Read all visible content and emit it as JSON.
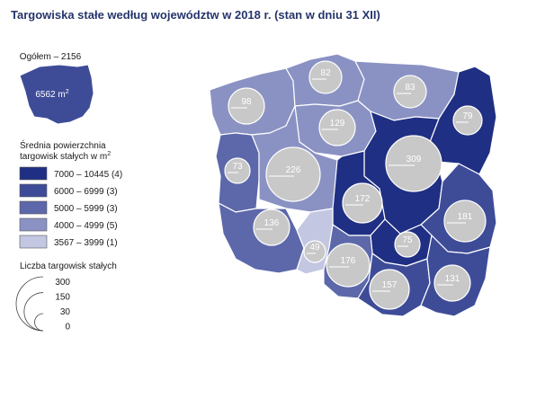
{
  "title": "Targowiska stałe według województw w 2018 r. (stan w dniu 31 XII)",
  "total": {
    "label": "Ogółem – 2156",
    "area_value": "6562",
    "area_unit": "m",
    "area_sup": "2"
  },
  "legend_area": {
    "title_line1": "Średnia powierzchnia",
    "title_line2": "targowisk stałych w m",
    "title_sup": "2",
    "classes": [
      {
        "label": "7000 – 10445 (4)",
        "color": "#1f2f83"
      },
      {
        "label": "6000 –   6999 (3)",
        "color": "#3e4c98"
      },
      {
        "label": "5000 –   5999 (3)",
        "color": "#5c68aa"
      },
      {
        "label": "4000 –   4999 (5)",
        "color": "#8a92c4"
      },
      {
        "label": "3567 –   3999 (1)",
        "color": "#c3c7e2"
      }
    ]
  },
  "legend_count": {
    "title": "Liczba targowisk stałych",
    "levels": [
      "300",
      "150",
      "30",
      "0"
    ]
  },
  "regions": [
    {
      "name": "zachodniopomorskie",
      "count": "98",
      "color": "#8a92c4"
    },
    {
      "name": "pomorskie",
      "count": "82",
      "color": "#8a92c4"
    },
    {
      "name": "warmińsko-mazurskie",
      "count": "83",
      "color": "#8a92c4"
    },
    {
      "name": "podlaskie",
      "count": "79",
      "color": "#1f2f83"
    },
    {
      "name": "kujawsko-pomorskie",
      "count": "129",
      "color": "#8a92c4"
    },
    {
      "name": "lubuskie",
      "count": "73",
      "color": "#5c68aa"
    },
    {
      "name": "wielkopolskie",
      "count": "226",
      "color": "#8a92c4"
    },
    {
      "name": "mazowieckie",
      "count": "309",
      "color": "#1f2f83"
    },
    {
      "name": "łódzkie",
      "count": "172",
      "color": "#1f2f83"
    },
    {
      "name": "lubelskie",
      "count": "181",
      "color": "#3e4c98"
    },
    {
      "name": "dolnośląskie",
      "count": "136",
      "color": "#5c68aa"
    },
    {
      "name": "opolskie",
      "count": "49",
      "color": "#c3c7e2"
    },
    {
      "name": "świętokrzyskie",
      "count": "75",
      "color": "#1f2f83"
    },
    {
      "name": "śląskie",
      "count": "176",
      "color": "#5c68aa"
    },
    {
      "name": "małopolskie",
      "count": "157",
      "color": "#3e4c98"
    },
    {
      "name": "podkarpackie",
      "count": "131",
      "color": "#3e4c98"
    }
  ]
}
